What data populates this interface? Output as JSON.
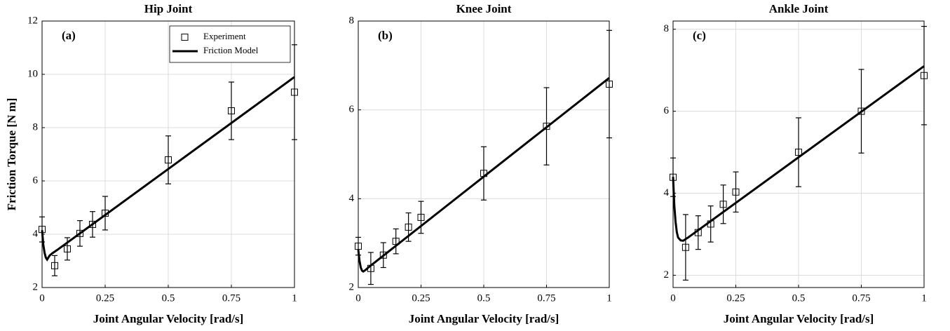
{
  "chart_data": [
    {
      "type": "line",
      "title": "Hip Joint",
      "annotation": "(a)",
      "xlabel": "Joint Angular Velocity [rad/s]",
      "ylabel": "Friction Torque [N m]",
      "xlim": [
        0,
        1
      ],
      "ylim": [
        2,
        12
      ],
      "xticks": [
        0,
        0.25,
        0.5,
        0.75,
        1
      ],
      "yticks": [
        2,
        4,
        6,
        8,
        10,
        12
      ],
      "grid": true,
      "legend": "upper right",
      "series": [
        {
          "name": "Experiment",
          "color": "#000000",
          "marker": "square",
          "x": [
            0,
            0.05,
            0.1,
            0.15,
            0.2,
            0.25,
            0.5,
            0.75,
            1
          ],
          "values": [
            4.18,
            2.82,
            3.45,
            4.03,
            4.37,
            4.79,
            6.79,
            8.63,
            9.33
          ],
          "errors": [
            0.47,
            0.38,
            0.42,
            0.48,
            0.48,
            0.63,
            0.9,
            1.08,
            1.78
          ]
        },
        {
          "name": "Friction Model",
          "color": "#000000",
          "x": [
            0,
            0.005,
            0.01,
            0.015,
            0.02,
            0.03,
            0.04,
            0.06,
            1
          ],
          "values": [
            4.15,
            3.6,
            3.3,
            3.12,
            3.05,
            3.2,
            3.28,
            3.41,
            9.9
          ]
        }
      ]
    },
    {
      "type": "line",
      "title": "Knee Joint",
      "annotation": "(b)",
      "xlabel": "Joint Angular Velocity [rad/s]",
      "xlim": [
        0,
        1
      ],
      "ylim": [
        2,
        8
      ],
      "xticks": [
        0,
        0.25,
        0.5,
        0.75,
        1
      ],
      "yticks": [
        2,
        4,
        6,
        8
      ],
      "grid": true,
      "series": [
        {
          "color": "#000000",
          "marker": "square",
          "x": [
            0,
            0.05,
            0.1,
            0.15,
            0.2,
            0.25,
            0.5,
            0.75,
            1
          ],
          "values": [
            2.93,
            2.43,
            2.73,
            3.04,
            3.36,
            3.58,
            4.57,
            5.63,
            6.58
          ],
          "errors": [
            0.2,
            0.36,
            0.28,
            0.28,
            0.32,
            0.36,
            0.6,
            0.87,
            1.21
          ]
        },
        {
          "color": "#000000",
          "x": [
            0,
            0.005,
            0.01,
            0.015,
            0.02,
            0.03,
            0.04,
            0.06,
            1
          ],
          "values": [
            2.85,
            2.6,
            2.45,
            2.38,
            2.36,
            2.4,
            2.45,
            2.54,
            6.72
          ]
        }
      ]
    },
    {
      "type": "line",
      "title": "Ankle Joint",
      "annotation": "(c)",
      "xlabel": "Joint Angular Velocity [rad/s]",
      "xlim": [
        0,
        1
      ],
      "ylim": [
        1.7,
        8.2
      ],
      "xticks": [
        0,
        0.25,
        0.5,
        0.75,
        1
      ],
      "yticks": [
        2,
        4,
        6,
        8
      ],
      "grid": true,
      "series": [
        {
          "color": "#000000",
          "marker": "square",
          "x": [
            0,
            0.05,
            0.1,
            0.15,
            0.2,
            0.25,
            0.5,
            0.75,
            1
          ],
          "values": [
            4.39,
            2.68,
            3.04,
            3.25,
            3.73,
            4.03,
            5.0,
            6.0,
            6.87
          ],
          "errors": [
            0.47,
            0.8,
            0.41,
            0.44,
            0.47,
            0.49,
            0.84,
            1.02,
            1.2
          ]
        },
        {
          "color": "#000000",
          "x": [
            0,
            0.005,
            0.01,
            0.015,
            0.02,
            0.03,
            0.04,
            0.06,
            1
          ],
          "values": [
            4.4,
            3.7,
            3.3,
            3.05,
            2.92,
            2.85,
            2.84,
            2.92,
            7.1
          ]
        }
      ]
    }
  ]
}
